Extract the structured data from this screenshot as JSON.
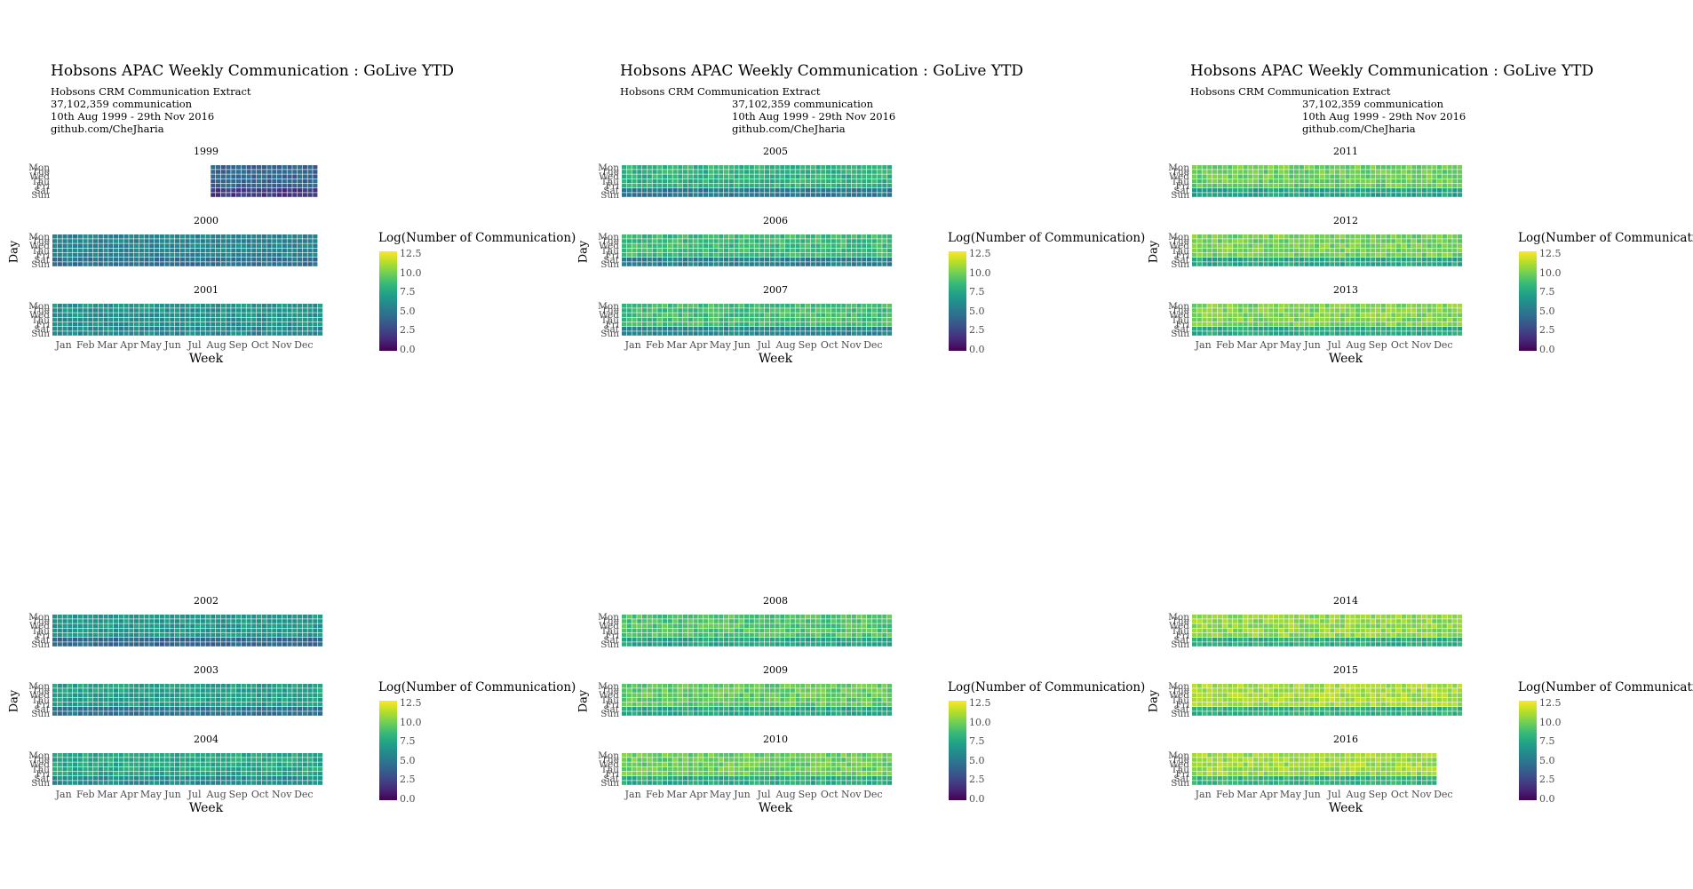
{
  "chart_data": {
    "type": "heatmap",
    "title": "Hobsons APAC Weekly Communication : GoLive YTD",
    "subtitle_lines": [
      "Hobsons CRM Communication Extract",
      "37,102,359 communication",
      "10th Aug 1999 - 29th Nov 2016",
      "github.com/CheJharia"
    ],
    "xlabel": "Week",
    "ylabel": "Day",
    "day_labels": [
      "Mon",
      "Tue",
      "Wed",
      "Thu",
      "Fri",
      "Sat",
      "Sun"
    ],
    "month_labels": [
      "Jan",
      "Feb",
      "Mar",
      "Apr",
      "May",
      "Jun",
      "Jul",
      "Aug",
      "Sep",
      "Oct",
      "Nov",
      "Dec"
    ],
    "legend": {
      "title": "Log(Number of Communication)",
      "ticks": [
        "12.5",
        "10.0",
        "7.5",
        "5.0",
        "2.5",
        "0.0"
      ],
      "range": [
        0,
        12.5
      ],
      "colors": [
        "#440154",
        "#482878",
        "#3e4a89",
        "#31688e",
        "#26828e",
        "#1f9e89",
        "#35b779",
        "#6ece58",
        "#b5de2b",
        "#fde725"
      ]
    },
    "panels": [
      {
        "facets": [
          {
            "year": "1999",
            "weekday": 4.0,
            "weekend": 2.0,
            "start_week": 32,
            "end_week": 52
          },
          {
            "year": "2000",
            "weekday": 5.6,
            "weekend": 4.6,
            "start_week": 1,
            "end_week": 52
          },
          {
            "year": "2001",
            "weekday": 6.4,
            "weekend": 5.8,
            "start_week": 1,
            "end_week": 53
          }
        ]
      },
      {
        "facets": [
          {
            "year": "2005",
            "weekday": 8.0,
            "weekend": 5.0,
            "start_week": 1,
            "end_week": 53
          },
          {
            "year": "2006",
            "weekday": 8.4,
            "weekend": 5.4,
            "start_week": 1,
            "end_week": 53
          },
          {
            "year": "2007",
            "weekday": 8.6,
            "weekend": 5.8,
            "start_week": 1,
            "end_week": 53
          }
        ]
      },
      {
        "facets": [
          {
            "year": "2011",
            "weekday": 9.6,
            "weekend": 7.2,
            "start_week": 1,
            "end_week": 53
          },
          {
            "year": "2012",
            "weekday": 9.8,
            "weekend": 7.4,
            "start_week": 1,
            "end_week": 53
          },
          {
            "year": "2013",
            "weekday": 10.0,
            "weekend": 7.6,
            "start_week": 1,
            "end_week": 53
          }
        ]
      },
      {
        "facets": [
          {
            "year": "2002",
            "weekday": 6.6,
            "weekend": 4.2,
            "start_week": 1,
            "end_week": 53
          },
          {
            "year": "2003",
            "weekday": 7.0,
            "weekend": 4.8,
            "start_week": 1,
            "end_week": 53
          },
          {
            "year": "2004",
            "weekday": 7.4,
            "weekend": 6.0,
            "start_week": 1,
            "end_week": 53
          }
        ]
      },
      {
        "facets": [
          {
            "year": "2008",
            "weekday": 9.0,
            "weekend": 7.2,
            "start_week": 1,
            "end_week": 53
          },
          {
            "year": "2009",
            "weekday": 9.4,
            "weekend": 7.4,
            "start_week": 1,
            "end_week": 53
          },
          {
            "year": "2010",
            "weekday": 9.6,
            "weekend": 7.6,
            "start_week": 1,
            "end_week": 53
          }
        ]
      },
      {
        "facets": [
          {
            "year": "2014",
            "weekday": 10.4,
            "weekend": 7.8,
            "start_week": 1,
            "end_week": 53
          },
          {
            "year": "2015",
            "weekday": 10.8,
            "weekend": 8.0,
            "start_week": 1,
            "end_week": 53
          },
          {
            "year": "2016",
            "weekday": 10.6,
            "weekend": 8.0,
            "start_week": 1,
            "end_week": 48
          }
        ]
      }
    ]
  }
}
